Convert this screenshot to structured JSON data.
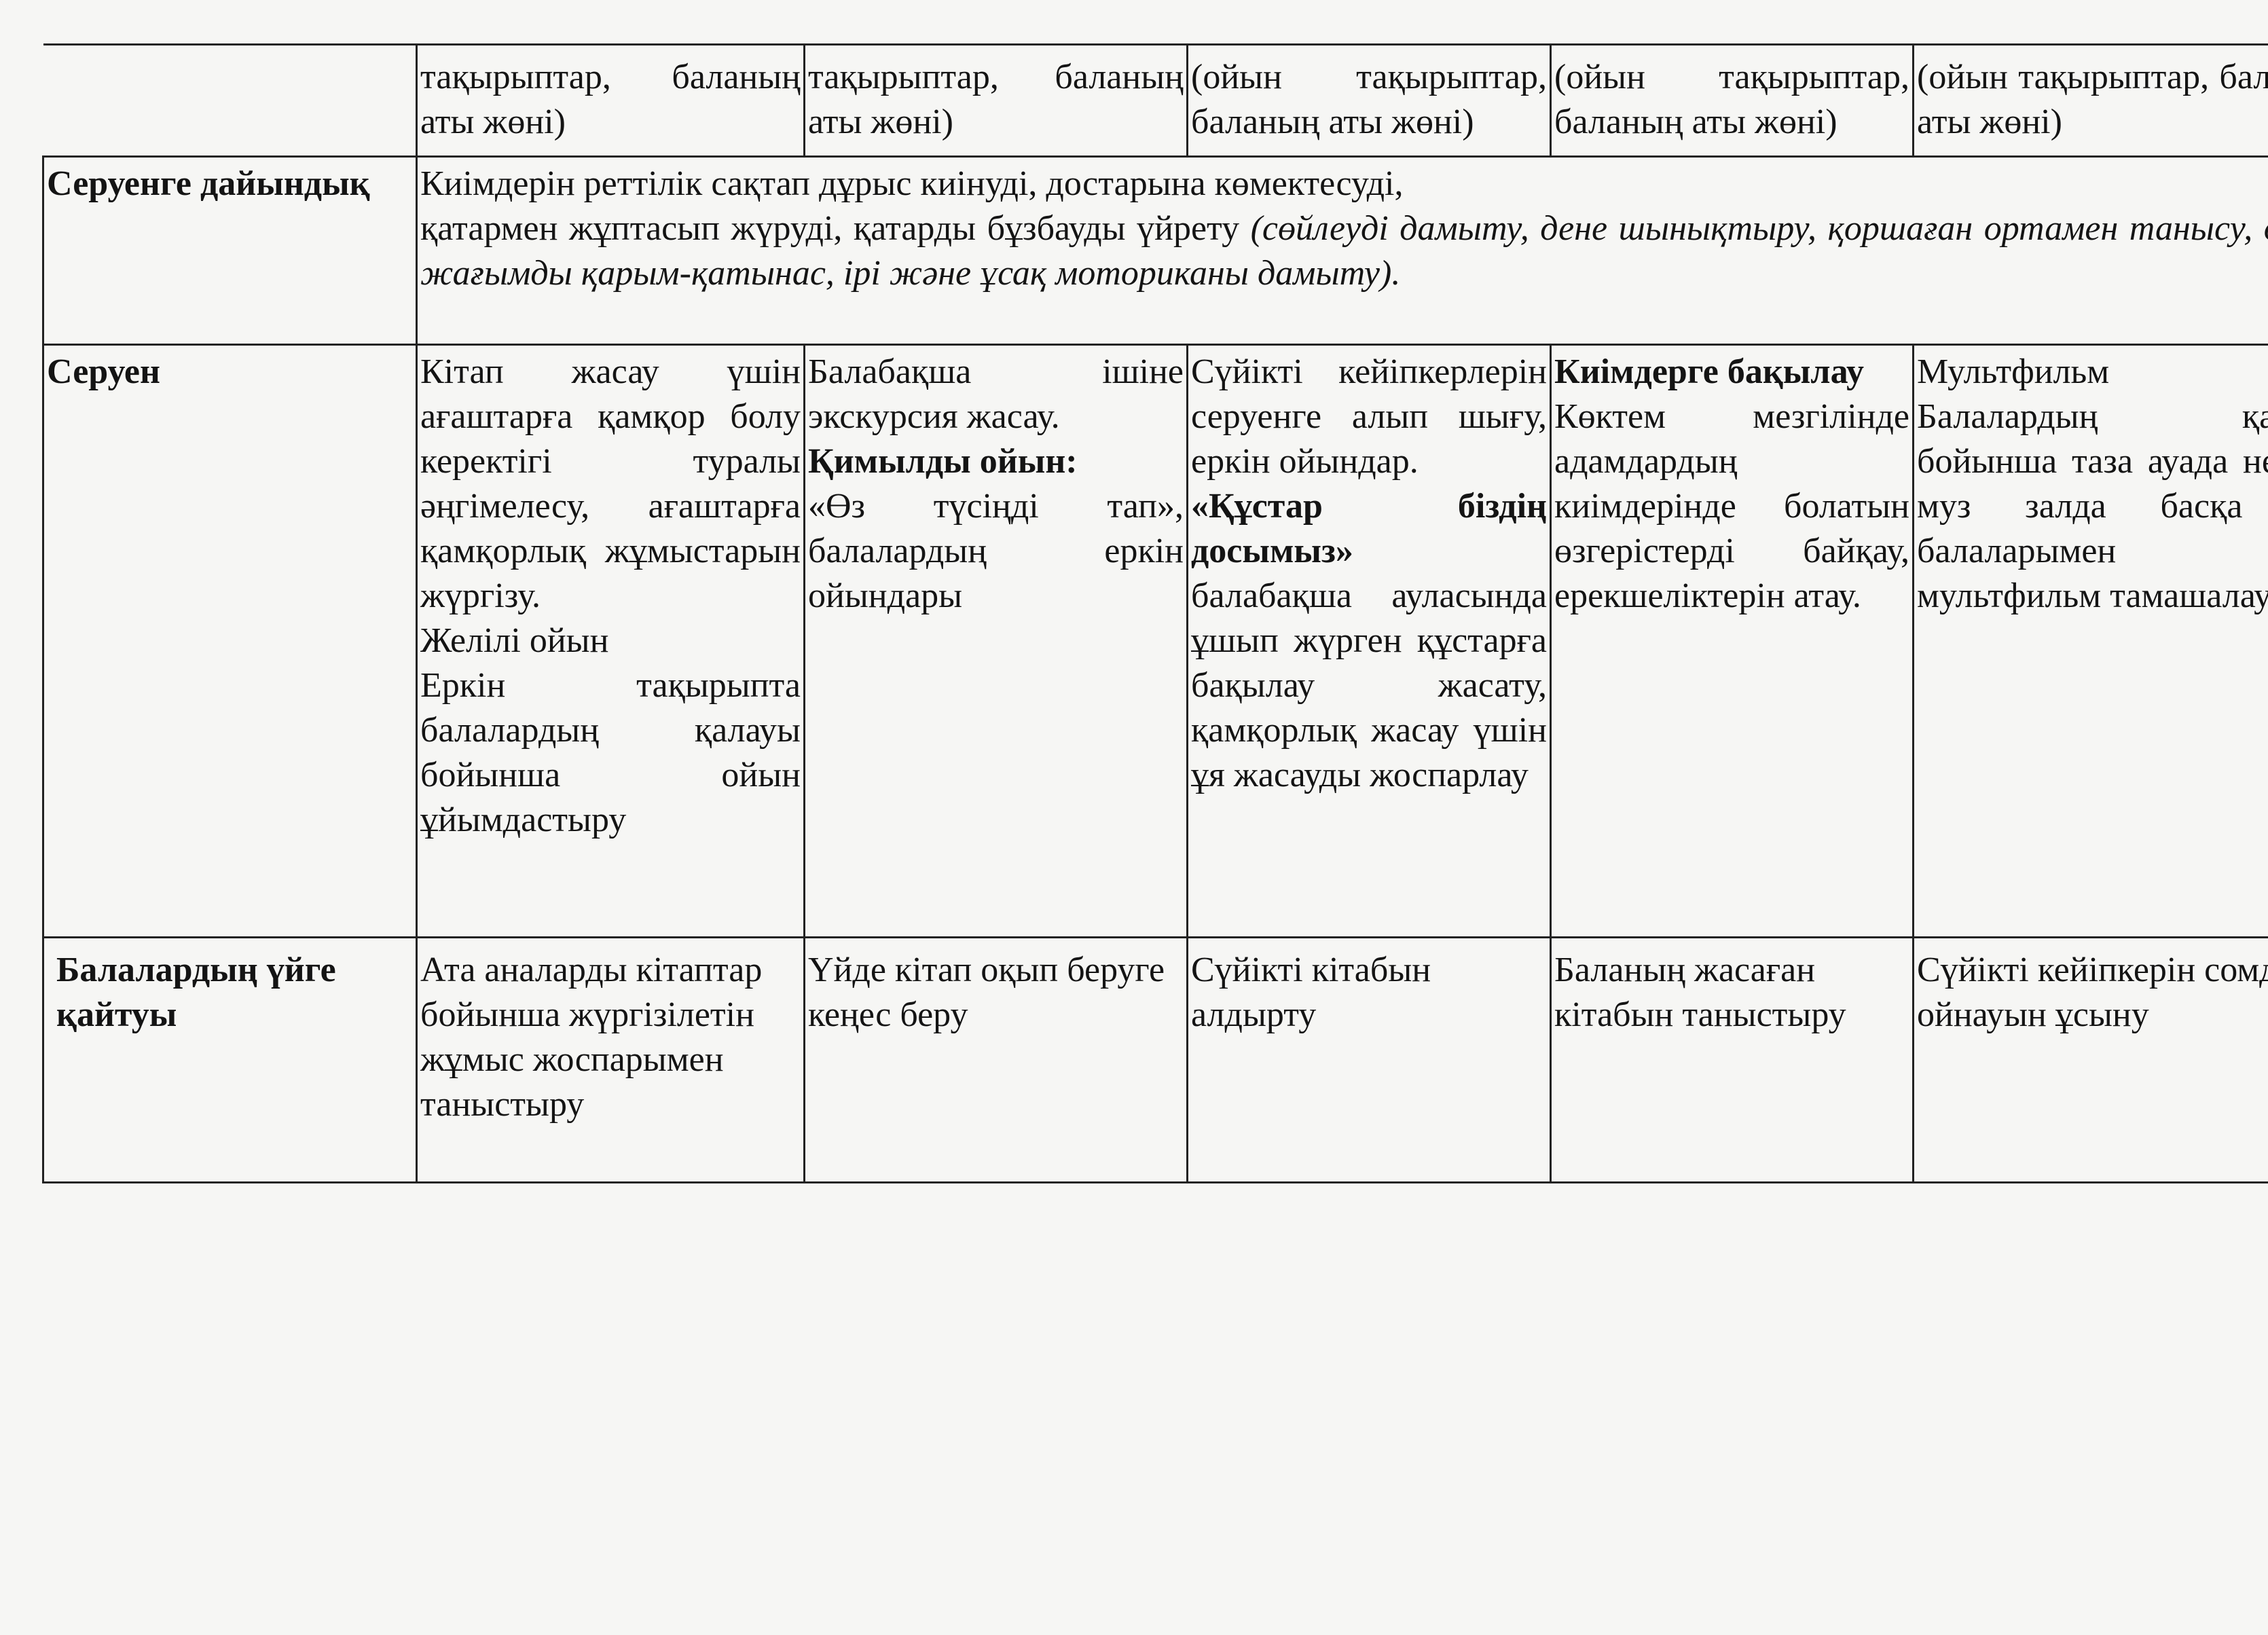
{
  "rows": [
    {
      "label": "",
      "cells": [
        "тақырыптар, баланың аты жөні)",
        "тақырыптар, баланың аты жөні)",
        "(ойын тақырыптар, баланың аты жөні)",
        "(ойын тақырыптар, баланың аты жөні)",
        "(ойын тақырыптар, баланың аты жөні)"
      ]
    },
    {
      "label": "Серуенге дайындық",
      "text_line1": "Киімдерін реттілік сақтап дұрыс киінуді, достарына көмектесуді,",
      "text_line2": "қатармен жұптасып жүруді, қатарды бұзбауды үйрету",
      "text_italic": "(сөйлеуді дамыту, дене шынықтыру, қоршаған ортамен танысу, өзара жағымды қарым-қатынас, ірі және ұсақ моториканы дамыту)."
    },
    {
      "label": "Серуен",
      "cells": [
        {
          "text": "Кітап жасау үшін ағаштарға қамқор болу керектігі туралы әңгімелесу, ағаштарға қамқорлық жұмыстарын жүргізу.",
          "text2": "Желілі ойын",
          "text3": "Еркін тақырыпта балалардың қалауы бойынша ойын ұйымдастыру"
        },
        {
          "text": "Балабақша ішіне экскурсия жасау.",
          "bold": "Қимылды ойын:",
          "text2": "«Өз түсіңді тап», балалардың еркін ойындары"
        },
        {
          "text": "Сүйікті кейіпкерлерін серуенге алып шығу, еркін ойындар.",
          "bold": "«Құстар біздің досымыз»",
          "text2": "балабақша ауласында ұшып жүрген құстарға бақылау жасату, қамқорлық жасау үшін ұя жасауды жоспарлау"
        },
        {
          "bold": "Киімдерге бақылау",
          "text": "Көктем мезгілінде адамдардың киімдерінде болатын өзгерістерді байқау, ерекшеліктерін атау."
        },
        {
          "text": "Мультфильм",
          "text2": "Балалардың қалауы бойынша таза ауада немесе муз залда басқа топ балаларымен бірге мультфильм тамашалау"
        }
      ]
    },
    {
      "label": "Балалардың үйге қайтуы",
      "cells": [
        "Ата аналарды кітаптар бойынша жүргізілетін жұмыс жоспарымен таныстыру",
        "Үйде кітап оқып беруге кеңес беру",
        "Сүйікті кітабын алдырту",
        "Баланың жасаған кітабын таныстыру",
        "Сүйікті кейіпкерін сомдап ойнауын ұсыну"
      ]
    }
  ]
}
